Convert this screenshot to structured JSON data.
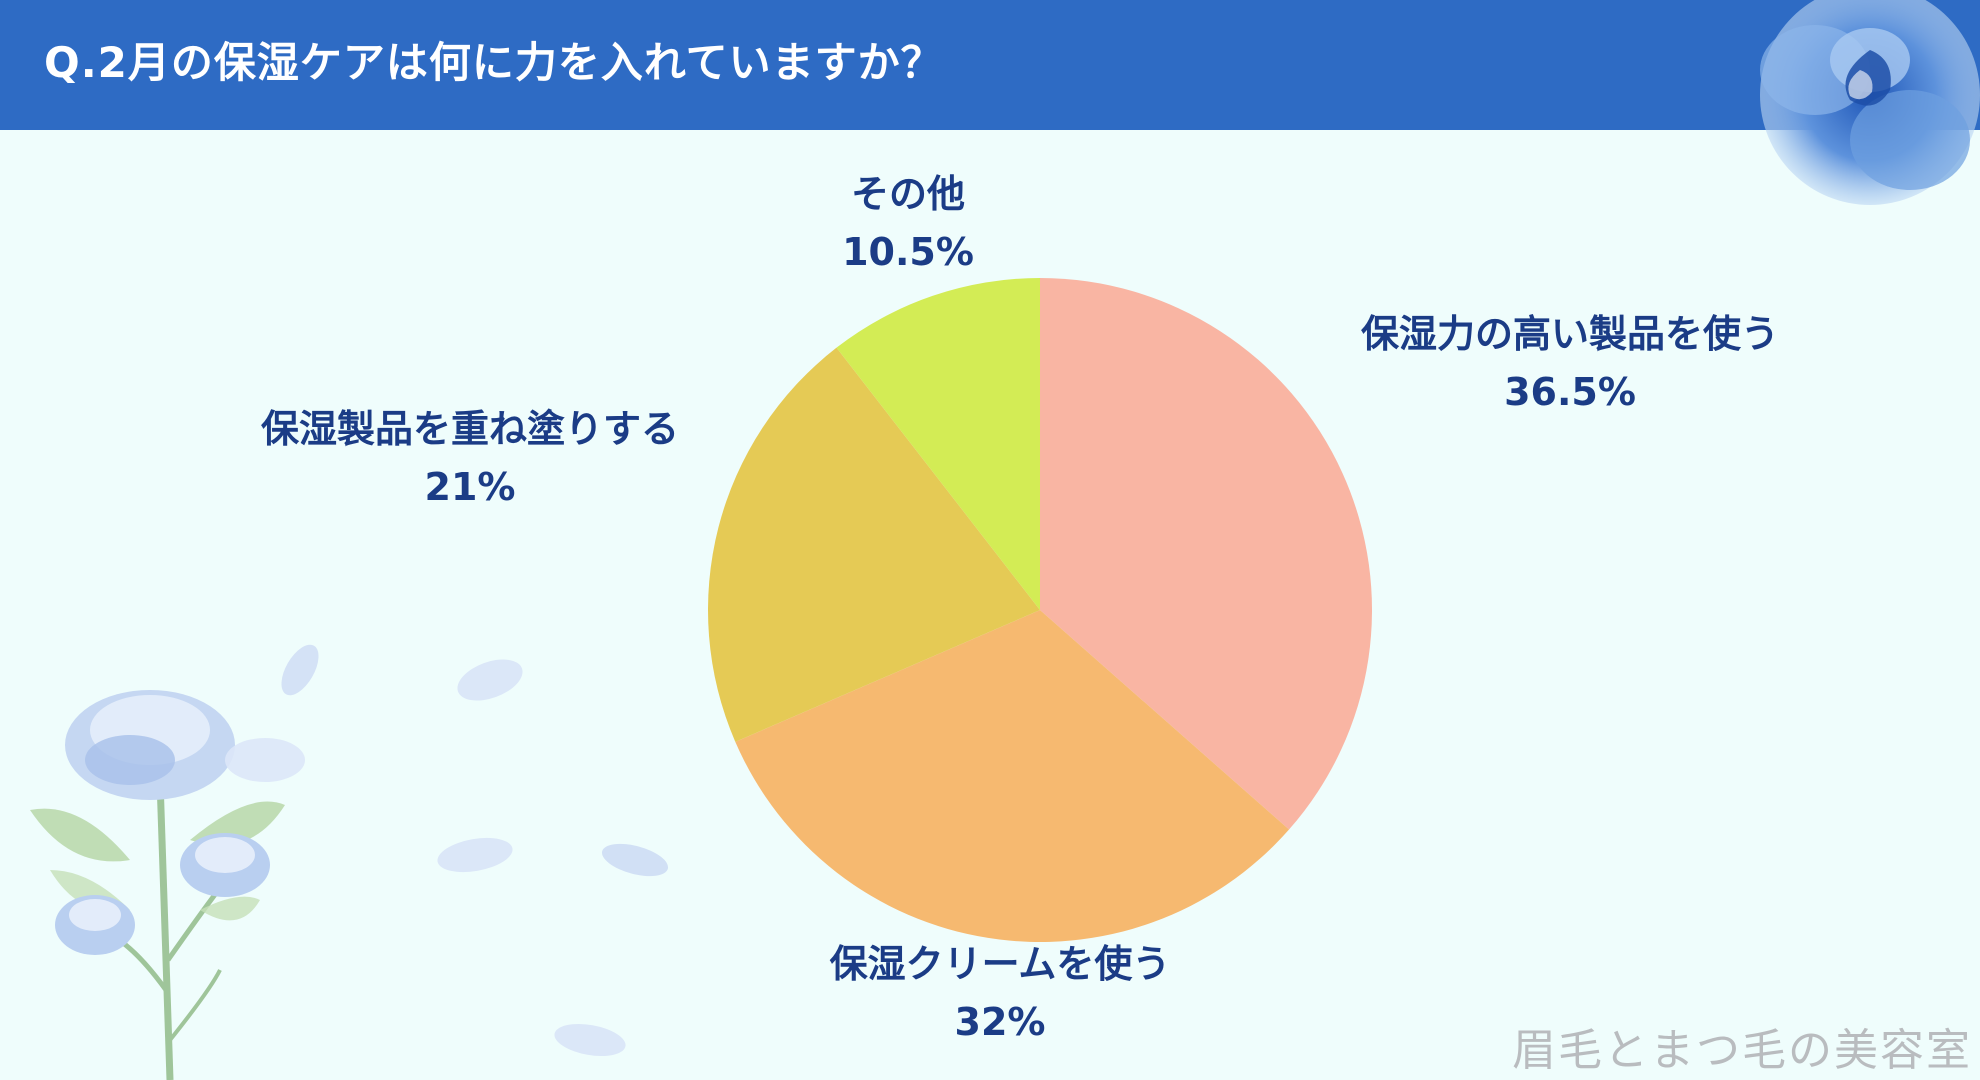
{
  "header": {
    "title": "Q.2月の保湿ケアは何に力を入れていますか？"
  },
  "chart_data": {
    "type": "pie",
    "title": "Q.2月の保湿ケアは何に力を入れていますか？",
    "slices": [
      {
        "label": "保湿力の高い製品を使う",
        "value": 36.5,
        "display": "36.5%",
        "color": "#f9b5a3"
      },
      {
        "label": "保湿クリームを使う",
        "value": 32,
        "display": "32%",
        "color": "#f6b970"
      },
      {
        "label": "保湿製品を重ね塗りする",
        "value": 21,
        "display": "21%",
        "color": "#e5ca55"
      },
      {
        "label": "その他",
        "value": 10.5,
        "display": "10.5%",
        "color": "#d3ec55"
      }
    ],
    "start": "12 o'clock",
    "direction": "clockwise",
    "legend": "none (labels outside slices)"
  },
  "watermark": "眉毛とまつ毛の美容室",
  "decorations": {
    "top_right": "blue-rose-icon",
    "bottom_left": "blue-rose-branch-icon",
    "petals": "petal-icon"
  }
}
